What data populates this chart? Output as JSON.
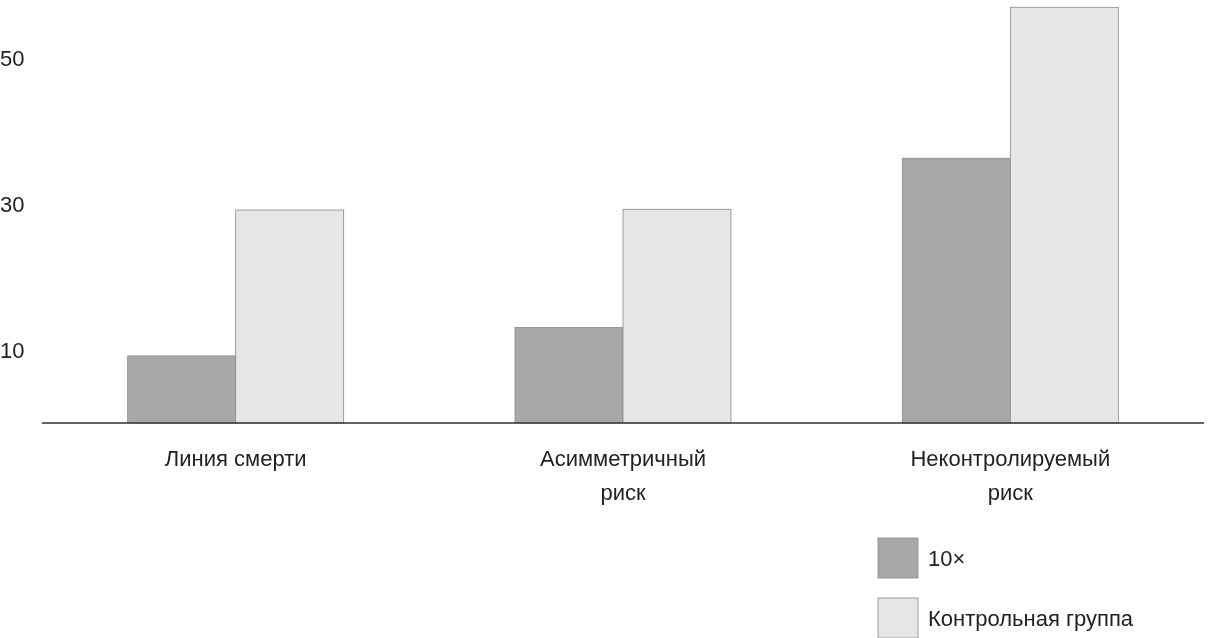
{
  "chart_data": {
    "type": "bar",
    "categories": [
      "Линия смерти",
      "Асимметричный риск",
      "Неконтролируемый риск"
    ],
    "series": [
      {
        "name": "10×",
        "color": "#a7a8aa",
        "values": [
          9.2,
          13.1,
          36.3
        ]
      },
      {
        "name": "Контрольная группа",
        "color": "#e6e6e6",
        "values": [
          29.2,
          29.3,
          57
        ]
      }
    ],
    "ylim": [
      0,
      58
    ],
    "yticks": [
      10,
      30,
      50
    ],
    "grid": false,
    "legend": "bottom right"
  }
}
